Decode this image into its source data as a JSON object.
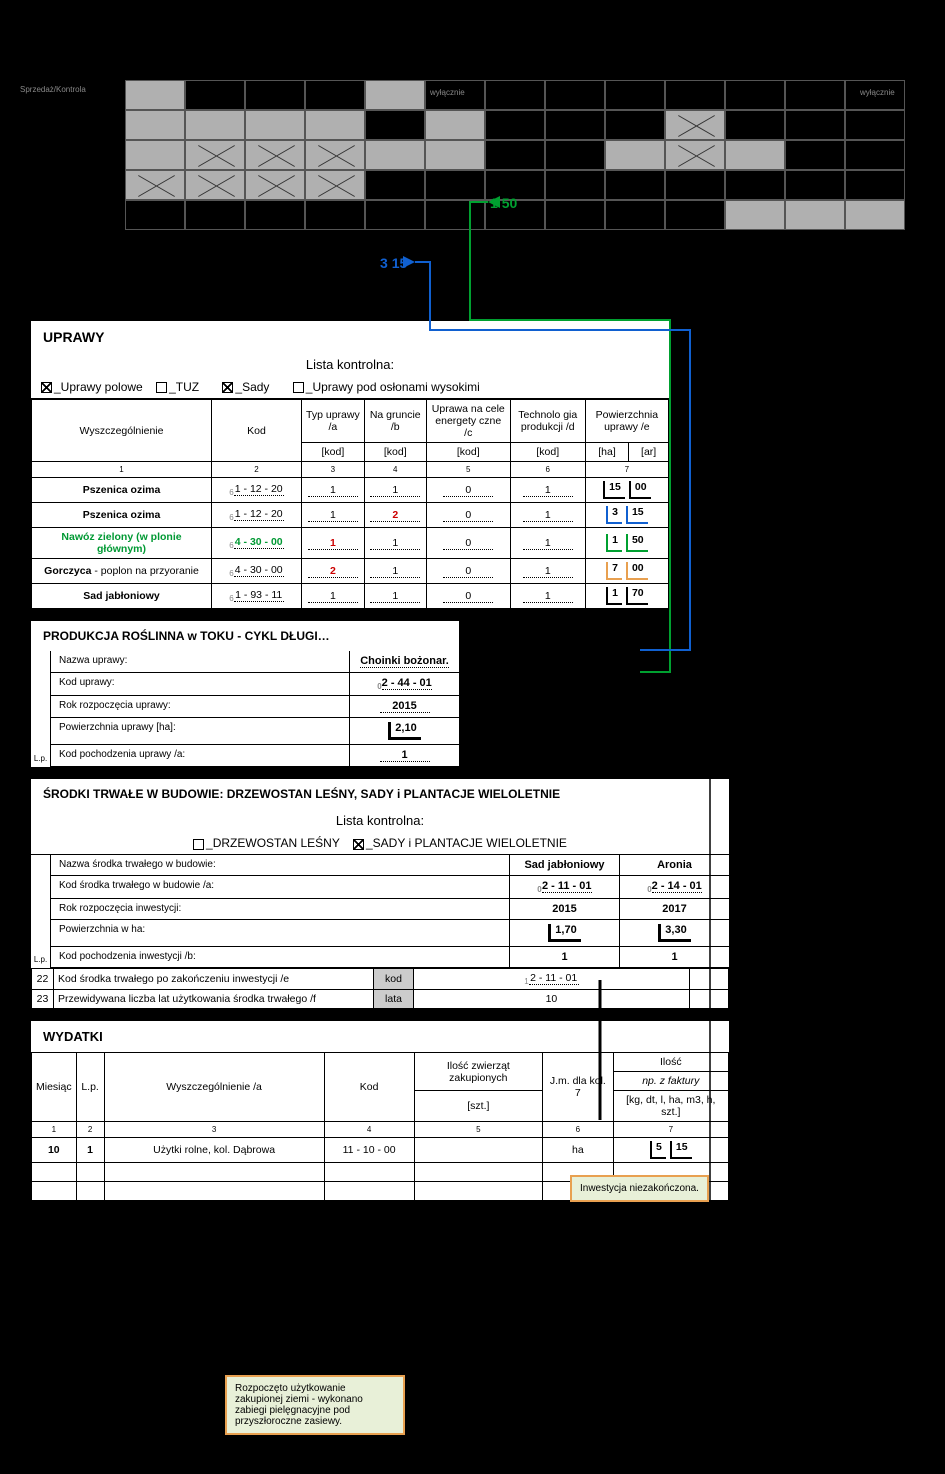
{
  "top_labels": {
    "l1": "Sprzedaż/Kontrola",
    "l2": "wyłącznie",
    "l3": "wyłącznie"
  },
  "float": {
    "green_num": "1",
    "green_frac": "50",
    "blue_num": "3",
    "blue_frac": "15"
  },
  "uprawy": {
    "title": "UPRAWY",
    "list_title": "Lista kontrolna:",
    "checks": {
      "polowe": "_Uprawy polowe",
      "tuz": "_TUZ",
      "sady": "_Sady",
      "oslony": "_Uprawy pod osłonami wysokimi"
    },
    "headers": {
      "wysz": "Wyszczególnienie",
      "kod": "Kod",
      "typ": "Typ uprawy /a",
      "gruncie": "Na gruncie /b",
      "energy": "Uprawa na cele energety czne /c",
      "tech": "Technolo gia produkcji /d",
      "pow": "Powierzchnia uprawy /e",
      "kod_u": "[kod]",
      "ha": "[ha]",
      "ar": "[ar]"
    },
    "colnums": [
      "1",
      "2",
      "3",
      "4",
      "5",
      "6",
      "7"
    ],
    "rows": [
      {
        "name": "Pszenica ozima",
        "name_class": "bold",
        "kod": "1 - 12 - 20",
        "a": "1",
        "b": "1",
        "c": "0",
        "d": "1",
        "ha": "15",
        "ar": "00",
        "pre": "6"
      },
      {
        "name": "Pszenica ozima",
        "name_class": "bold",
        "kod": "1 - 12 - 20",
        "a": "1",
        "b": "2",
        "b_class": "red",
        "c": "0",
        "d": "1",
        "ha": "3",
        "ar": "15",
        "bracket": "blue",
        "pre": "6"
      },
      {
        "name": "Nawóz zielony (w plonie głównym)",
        "name_class": "green",
        "kod": "4 - 30 - 00",
        "kod_class": "green",
        "a": "1",
        "a_class": "red",
        "b": "1",
        "c": "0",
        "d": "1",
        "ha": "1",
        "ar": "50",
        "bracket": "green",
        "pre": "6"
      },
      {
        "name_plain": "Gorczyca",
        "name_suffix": " - poplon na przyoranie",
        "kod": "4 - 30 - 00",
        "a": "2",
        "a_class": "red",
        "b": "1",
        "c": "0",
        "d": "1",
        "ha": "7",
        "ar": "00",
        "bracket": "orange",
        "pre": "6"
      },
      {
        "name": "Sad jabłoniowy",
        "name_class": "bold",
        "kod": "1 - 93 - 11",
        "a": "1",
        "b": "1",
        "c": "0",
        "d": "1",
        "ha": "1",
        "ar": "70",
        "bracket": "black",
        "pre": "6"
      }
    ]
  },
  "produkcja": {
    "title": "PRODUKCJA ROŚLINNA w TOKU - CYKL DŁUGI…",
    "rows": [
      {
        "label": "Nazwa uprawy:",
        "value": "Choinki bożonar."
      },
      {
        "label": "Kod uprawy:",
        "value": "2 - 44 - 01",
        "pre": "0"
      },
      {
        "label": "Rok rozpoczęcia uprawy:",
        "value": "2015"
      },
      {
        "label": "Powierzchnia uprawy [ha]:",
        "value": "2,10",
        "boxed": true
      },
      {
        "label": "Kod pochodzenia uprawy /a:",
        "value": "1"
      }
    ],
    "lp": "L.p."
  },
  "srodki": {
    "title": "ŚRODKI TRWAŁE W BUDOWIE: DRZEWOSTAN LEŚNY, SADY i PLANTACJE WIELOLETNIE",
    "list_title": "Lista kontrolna:",
    "checks": {
      "les": "_DRZEWOSTAN LEŚNY",
      "sady": "_SADY i PLANTACJE WIELOLETNIE"
    },
    "fields": [
      {
        "label": "Nazwa środka trwałego w budowie:",
        "v1": "Sad jabłoniowy",
        "v2": "Aronia"
      },
      {
        "label": "Kod środka trwałego w budowie /a:",
        "v1": "2 - 11 - 01",
        "v2": "2 - 14 - 01",
        "pre": "0"
      },
      {
        "label": "Rok rozpoczęcia inwestycji:",
        "v1": "2015",
        "v2": "2017"
      },
      {
        "label": "Powierzchnia w ha:",
        "v1": "1,70",
        "v2": "3,30",
        "boxed": true
      },
      {
        "label": "Kod pochodzenia inwestycji /b:",
        "v1": "1",
        "v2": "1"
      }
    ],
    "lp": "L.p.",
    "row22_num": "22",
    "row22_label": "Kod środka trwałego po zakończeniu inwestycji /e",
    "row22_unit": "kod",
    "row22_val": "2 - 11 - 01",
    "row22_pre": "1",
    "row23_num": "23",
    "row23_label": "Przewidywana liczba lat użytkowania środka trwałego /f",
    "row23_unit": "lata",
    "row23_val": "10"
  },
  "annot_inw": "Inwestycja niezakończona.",
  "wydatki": {
    "title": "WYDATKI",
    "headers": {
      "miesiac": "Miesiąc",
      "lp": "L.p.",
      "wysz": "Wyszczególnienie /a",
      "kod": "Kod",
      "ilosc_zw": "Ilość zwierząt zakupionych",
      "jm": "J.m. dla kol. 7",
      "ilosc": "Ilość",
      "np": "np. z faktury",
      "szt": "[szt.]",
      "kg": "[kg, dt, l, ha, m3, h, szt.]"
    },
    "colnums": [
      "1",
      "2",
      "3",
      "4",
      "5",
      "6",
      "7"
    ],
    "row": {
      "m": "10",
      "lp": "1",
      "wysz": "Użytki rolne, kol. Dąbrowa",
      "kod": "11 - 10 - 00",
      "zw": "",
      "jm": "ha",
      "il_a": "5",
      "il_b": "15"
    }
  },
  "annot_rozp": "Rozpoczęto użytkowanie zakupionej ziemi - wykonano zabiegi pielęgnacyjne pod przyszłoroczne zasiewy.",
  "colors": {
    "green": "#00a030",
    "blue": "#1060d0",
    "orange": "#e8a050",
    "black": "#000000"
  },
  "grid": {
    "rows": 5,
    "cols": 13,
    "filled": [
      [
        0,
        0
      ],
      [
        0,
        4
      ],
      [
        1,
        0
      ],
      [
        1,
        1
      ],
      [
        1,
        2
      ],
      [
        1,
        3
      ],
      [
        1,
        5
      ],
      [
        1,
        9
      ],
      [
        2,
        0
      ],
      [
        2,
        1
      ],
      [
        2,
        2
      ],
      [
        2,
        3
      ],
      [
        2,
        4
      ],
      [
        2,
        5
      ],
      [
        2,
        8
      ],
      [
        2,
        9
      ],
      [
        2,
        10
      ],
      [
        3,
        0
      ],
      [
        3,
        1
      ],
      [
        3,
        2
      ],
      [
        3,
        3
      ],
      [
        4,
        10
      ],
      [
        4,
        11
      ],
      [
        4,
        12
      ]
    ],
    "crossed": [
      [
        2,
        1
      ],
      [
        2,
        2
      ],
      [
        2,
        3
      ],
      [
        3,
        0
      ],
      [
        3,
        1
      ],
      [
        3,
        2
      ],
      [
        3,
        3
      ],
      [
        1,
        9
      ],
      [
        2,
        9
      ]
    ]
  }
}
